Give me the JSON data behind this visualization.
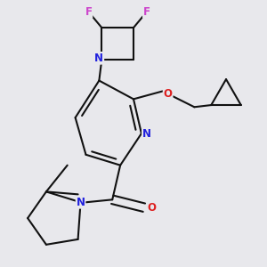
{
  "bg_color": "#e8e8ec",
  "bond_color": "#111111",
  "bond_width": 1.5,
  "dbo": 0.018,
  "atom_colors": {
    "N": "#2020dd",
    "O": "#dd2020",
    "F": "#cc44cc",
    "C": "#111111"
  },
  "afs": 8.5,
  "figsize": [
    3.0,
    3.0
  ],
  "dpi": 100
}
